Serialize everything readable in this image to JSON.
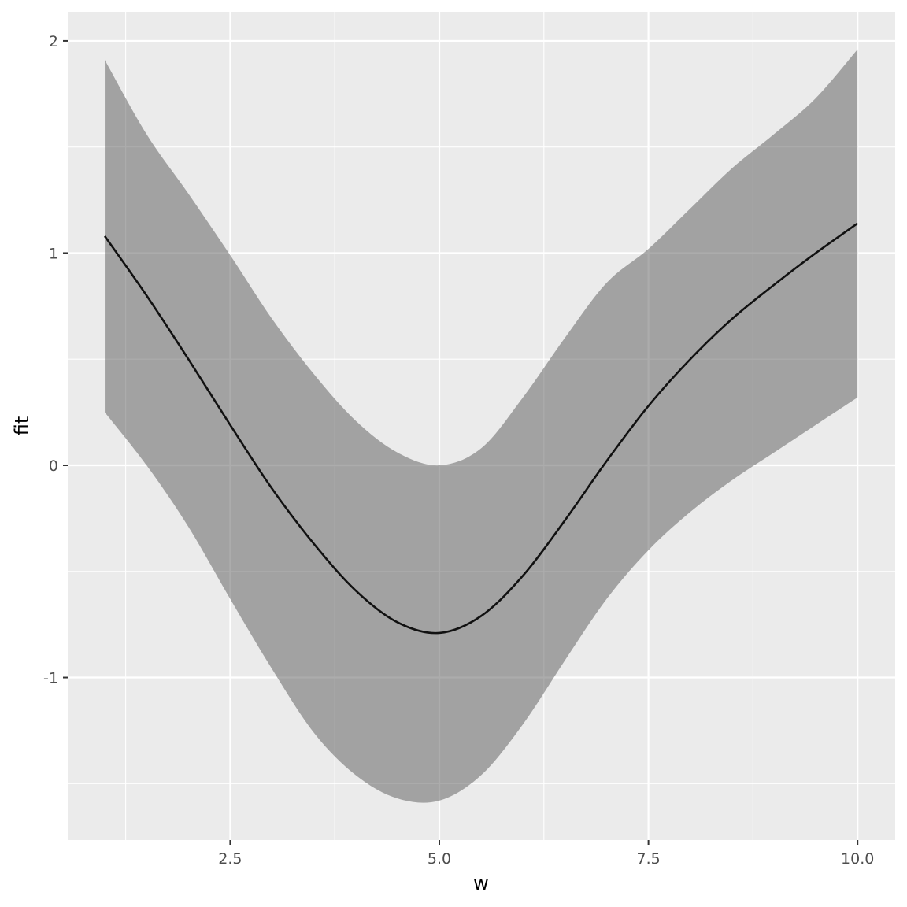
{
  "chart_data": {
    "type": "line",
    "x_label": "w",
    "y_label": "fit",
    "x": [
      1,
      1.5,
      2,
      2.5,
      3,
      3.5,
      4,
      4.5,
      5,
      5.5,
      6,
      6.5,
      7,
      7.5,
      8,
      8.5,
      9,
      9.5,
      10
    ],
    "values": [
      1.08,
      0.8,
      0.5,
      0.19,
      -0.11,
      -0.37,
      -0.59,
      -0.74,
      -0.79,
      -0.71,
      -0.52,
      -0.26,
      0.02,
      0.28,
      0.5,
      0.69,
      0.85,
      1.0,
      1.14
    ],
    "lower": [
      0.25,
      0.0,
      -0.29,
      -0.63,
      -0.96,
      -1.26,
      -1.46,
      -1.57,
      -1.58,
      -1.46,
      -1.22,
      -0.92,
      -0.63,
      -0.4,
      -0.22,
      -0.07,
      0.06,
      0.19,
      0.32
    ],
    "upper": [
      1.91,
      1.56,
      1.28,
      0.99,
      0.69,
      0.43,
      0.21,
      0.06,
      0.0,
      0.08,
      0.32,
      0.6,
      0.86,
      1.02,
      1.21,
      1.4,
      1.56,
      1.73,
      1.96
    ],
    "color": "#111111",
    "ribbon_color": "#595959",
    "xlim": [
      0.557,
      10.45
    ],
    "ylim": [
      -1.766,
      2.137
    ],
    "xticks": [
      2.5,
      {
        "value": 5,
        "label": "5.0"
      },
      7.5,
      {
        "value": 10,
        "label": "10.0"
      }
    ],
    "yticks": [
      -1,
      0,
      1,
      2
    ],
    "x_minor_grid": [
      1.25,
      3.75,
      6.25,
      8.75
    ],
    "y_minor_grid": [
      -1.5,
      -0.5,
      0.5,
      1.5
    ],
    "grid": true
  }
}
